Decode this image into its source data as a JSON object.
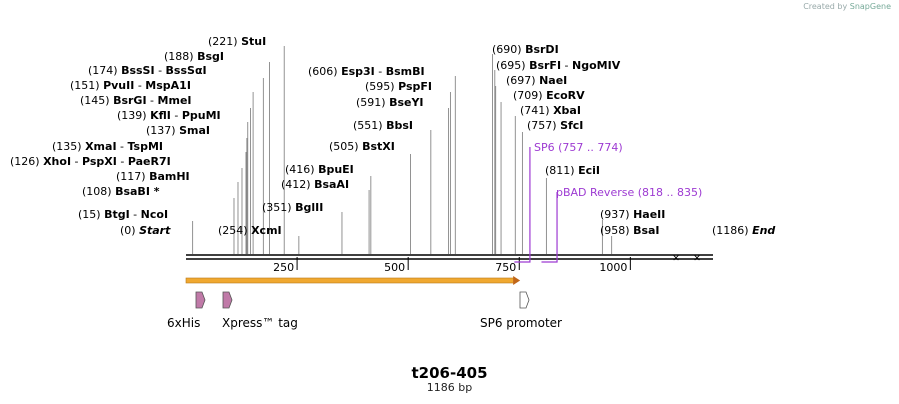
{
  "watermark": {
    "prefix": "Created by",
    "brand": "SnapGene"
  },
  "title": "t206-405",
  "length_label": "1186 bp",
  "total_bp": 1186,
  "sites": [
    {
      "pos": "(0)",
      "name": "Start",
      "bp": 0,
      "italic": true
    },
    {
      "pos": "(15)",
      "name": "BtgI",
      "name2": "NcoI",
      "bp": 15
    },
    {
      "pos": "(108)",
      "name": "BsaBI *",
      "bp": 108
    },
    {
      "pos": "(117)",
      "name": "BamHI",
      "bp": 117
    },
    {
      "pos": "(126)",
      "name": "XhoI",
      "name2": "PspXI",
      "name3": "PaeR7I",
      "bp": 126
    },
    {
      "pos": "(135)",
      "name": "XmaI",
      "name2": "TspMI",
      "bp": 135
    },
    {
      "pos": "(137)",
      "name": "SmaI",
      "bp": 137
    },
    {
      "pos": "(139)",
      "name": "KflI",
      "name2": "PpuMI",
      "bp": 139
    },
    {
      "pos": "(145)",
      "name": "BsrGI",
      "name2": "MmeI",
      "bp": 145
    },
    {
      "pos": "(151)",
      "name": "PvuII",
      "name2": "MspA1I",
      "bp": 151
    },
    {
      "pos": "(174)",
      "name": "BssSI",
      "name2": "BssSαI",
      "bp": 174
    },
    {
      "pos": "(188)",
      "name": "BsgI",
      "bp": 188
    },
    {
      "pos": "(221)",
      "name": "StuI",
      "bp": 221
    },
    {
      "pos": "(254)",
      "name": "XcmI",
      "bp": 254
    },
    {
      "pos": "(351)",
      "name": "BglII",
      "bp": 351
    },
    {
      "pos": "(412)",
      "name": "BsaAI",
      "bp": 412
    },
    {
      "pos": "(416)",
      "name": "BpuEI",
      "bp": 416
    },
    {
      "pos": "(505)",
      "name": "BstXI",
      "bp": 505
    },
    {
      "pos": "(551)",
      "name": "BbsI",
      "bp": 551
    },
    {
      "pos": "(591)",
      "name": "BseYI",
      "bp": 591
    },
    {
      "pos": "(595)",
      "name": "PspFI",
      "bp": 595
    },
    {
      "pos": "(606)",
      "name": "Esp3I",
      "name2": "BsmBI",
      "bp": 606
    },
    {
      "pos": "(690)",
      "name": "BsrDI",
      "bp": 690
    },
    {
      "pos": "(695)",
      "name": "BsrFI",
      "name2": "NgoMIV",
      "bp": 695
    },
    {
      "pos": "(697)",
      "name": "NaeI",
      "bp": 697
    },
    {
      "pos": "(709)",
      "name": "EcoRV",
      "bp": 709
    },
    {
      "pos": "(741)",
      "name": "XbaI",
      "bp": 741
    },
    {
      "pos": "(757)",
      "name": "SfcI",
      "bp": 757
    },
    {
      "pos": "(811)",
      "name": "EciI",
      "bp": 811
    },
    {
      "pos": "(937)",
      "name": "HaeII",
      "bp": 937
    },
    {
      "pos": "(958)",
      "name": "BsaI",
      "bp": 958
    },
    {
      "pos": "(1186)",
      "name": "End",
      "bp": 1186,
      "italic": true
    }
  ],
  "primers": [
    {
      "name": "SP6",
      "range": "(757 .. 774)",
      "start": 757,
      "end": 774
    },
    {
      "name": "pBAD Reverse",
      "range": "(818 .. 835)",
      "start": 818,
      "end": 835
    }
  ],
  "ticks": [
    {
      "label": "250",
      "bp": 250
    },
    {
      "label": "500",
      "bp": 500
    },
    {
      "label": "750",
      "bp": 750
    },
    {
      "label": "1000",
      "bp": 1000
    }
  ],
  "features": [
    {
      "name": "6xHis",
      "bp": 15,
      "color": "#c07aa8"
    },
    {
      "name": "Xpress™ tag",
      "bp": 60,
      "color": "#c07aa8"
    },
    {
      "name": "SP6 promoter",
      "bp": 775,
      "color": "#ffffff"
    }
  ],
  "orf": {
    "start": 0,
    "end": 752,
    "color": "#f0a830"
  }
}
